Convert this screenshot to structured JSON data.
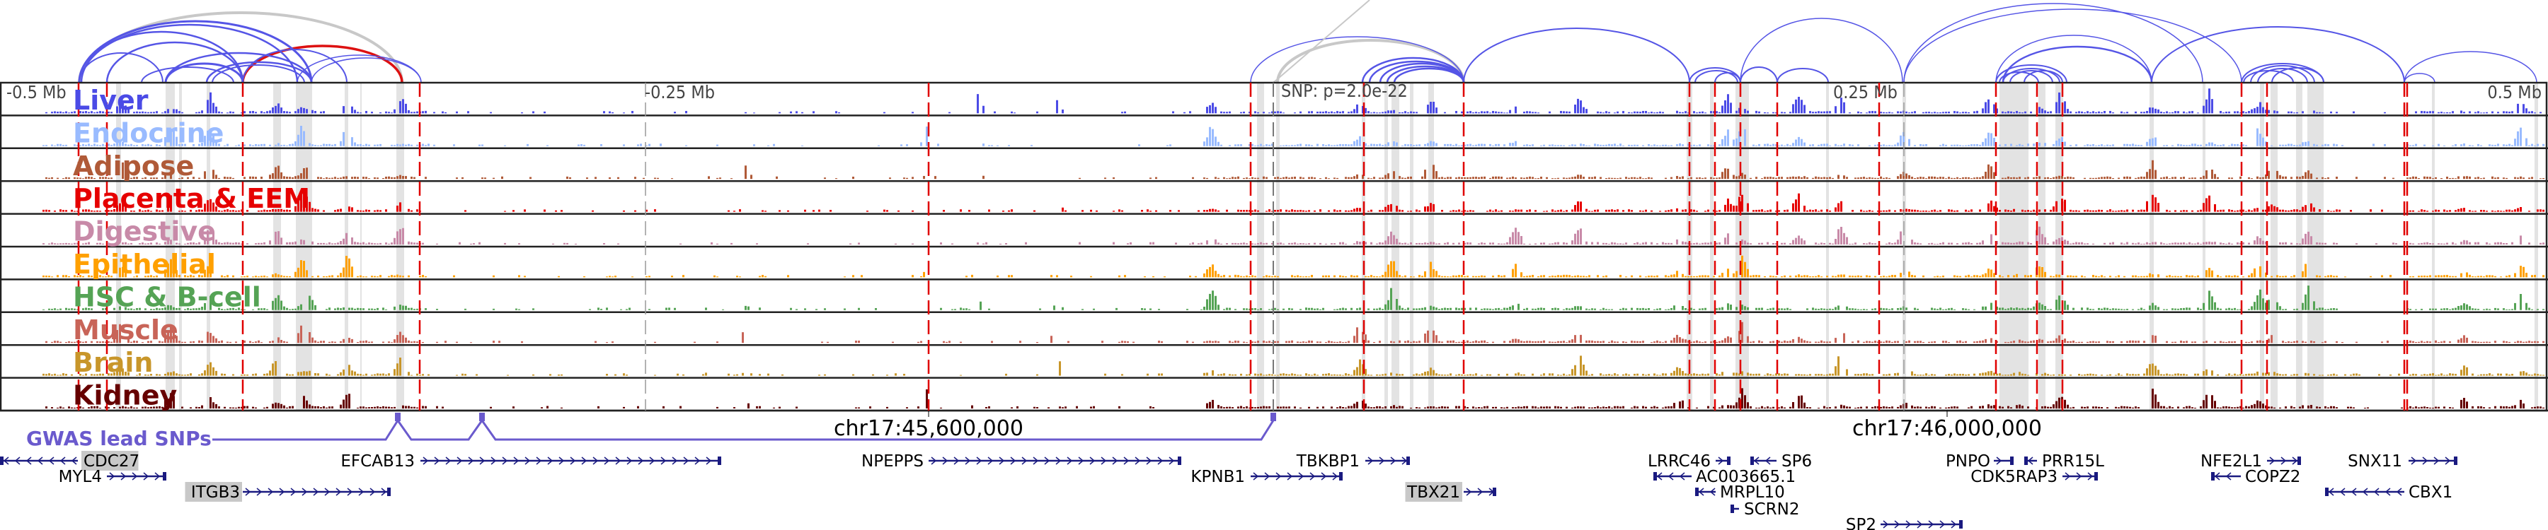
{
  "ruler": {
    "left": "-0.5 Mb",
    "left_mid": "-0.25 Mb",
    "snp": "SNP: p=2.0e-22",
    "right_mid": "0.25 Mb",
    "right": "0.5 Mb"
  },
  "tracks": [
    {
      "label": "Liver",
      "color": "#4b4be6"
    },
    {
      "label": "Endocrine",
      "color": "#99bbff"
    },
    {
      "label": "Adipose",
      "color": "#b05a38"
    },
    {
      "label": "Placenta & EEM",
      "color": "#e60000"
    },
    {
      "label": "Digestive",
      "color": "#c88aa8"
    },
    {
      "label": "Epithelial",
      "color": "#ffa000"
    },
    {
      "label": "HSC & B-cell",
      "color": "#55a355"
    },
    {
      "label": "Muscle",
      "color": "#c86458"
    },
    {
      "label": "Brain",
      "color": "#c8962a"
    },
    {
      "label": "Kidney",
      "color": "#660000"
    }
  ],
  "gwas": {
    "label": "GWAS lead SNPs",
    "color": "#6a5acd"
  },
  "coordinates": [
    "chr17:45,600,000",
    "chr17:46,000,000"
  ],
  "genes": [
    {
      "name": "CDC27",
      "strand": "-",
      "highlight": true
    },
    {
      "name": "MYL4",
      "strand": "+"
    },
    {
      "name": "ITGB3",
      "strand": "+",
      "highlight": true
    },
    {
      "name": "EFCAB13",
      "strand": "+"
    },
    {
      "name": "NPEPPS",
      "strand": "+"
    },
    {
      "name": "KPNB1",
      "strand": "+"
    },
    {
      "name": "TBKBP1",
      "strand": "+"
    },
    {
      "name": "TBX21",
      "strand": "+",
      "highlight": true
    },
    {
      "name": "LRRC46",
      "strand": "+"
    },
    {
      "name": "SP6",
      "strand": "-"
    },
    {
      "name": "AC003665.1",
      "strand": "-"
    },
    {
      "name": "MRPL10",
      "strand": "-"
    },
    {
      "name": "SCRN2",
      "strand": "-"
    },
    {
      "name": "SP2",
      "strand": "+"
    },
    {
      "name": "PNPO",
      "strand": "+"
    },
    {
      "name": "PRR15L",
      "strand": "-"
    },
    {
      "name": "CDK5RAP3",
      "strand": "+"
    },
    {
      "name": "NFE2L1",
      "strand": "+"
    },
    {
      "name": "COPZ2",
      "strand": "-"
    },
    {
      "name": "SNX11",
      "strand": "+"
    },
    {
      "name": "CBX1",
      "strand": "-"
    }
  ]
}
